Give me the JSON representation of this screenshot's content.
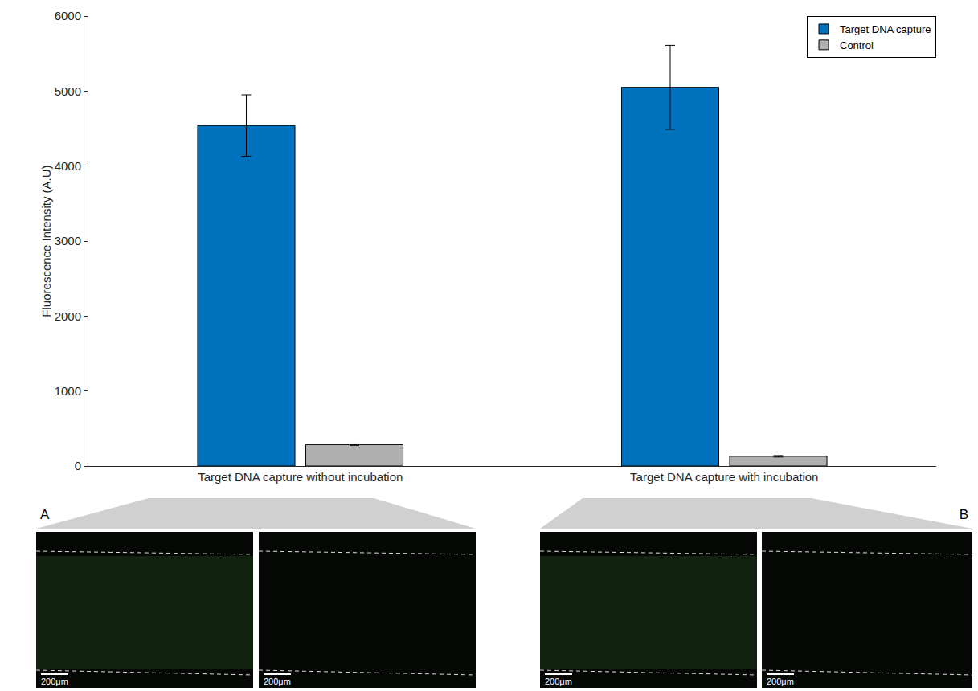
{
  "chart_data": {
    "type": "bar",
    "y_label": "Fluorescence Intensity (A.U)",
    "categories": [
      "Target DNA capture without incubation",
      "Target DNA capture with incubation"
    ],
    "series": [
      {
        "name": "Target DNA capture",
        "color": "#0072bd",
        "values": [
          4540,
          5050
        ],
        "errors": [
          410,
          560
        ]
      },
      {
        "name": "Control",
        "color": "#b0b0b0",
        "values": [
          285,
          130
        ],
        "errors": [
          10,
          10
        ]
      }
    ],
    "ylim": [
      0,
      6000
    ],
    "yticks": [
      0,
      1000,
      2000,
      3000,
      4000,
      5000,
      6000
    ],
    "grid": false,
    "legend": "top-right"
  },
  "panels": [
    {
      "letter": "A",
      "images": [
        {
          "scale_bar": "200μm"
        },
        {
          "scale_bar": "200μm"
        }
      ]
    },
    {
      "letter": "B",
      "images": [
        {
          "scale_bar": "200μm"
        },
        {
          "scale_bar": "200μm"
        }
      ]
    }
  ]
}
